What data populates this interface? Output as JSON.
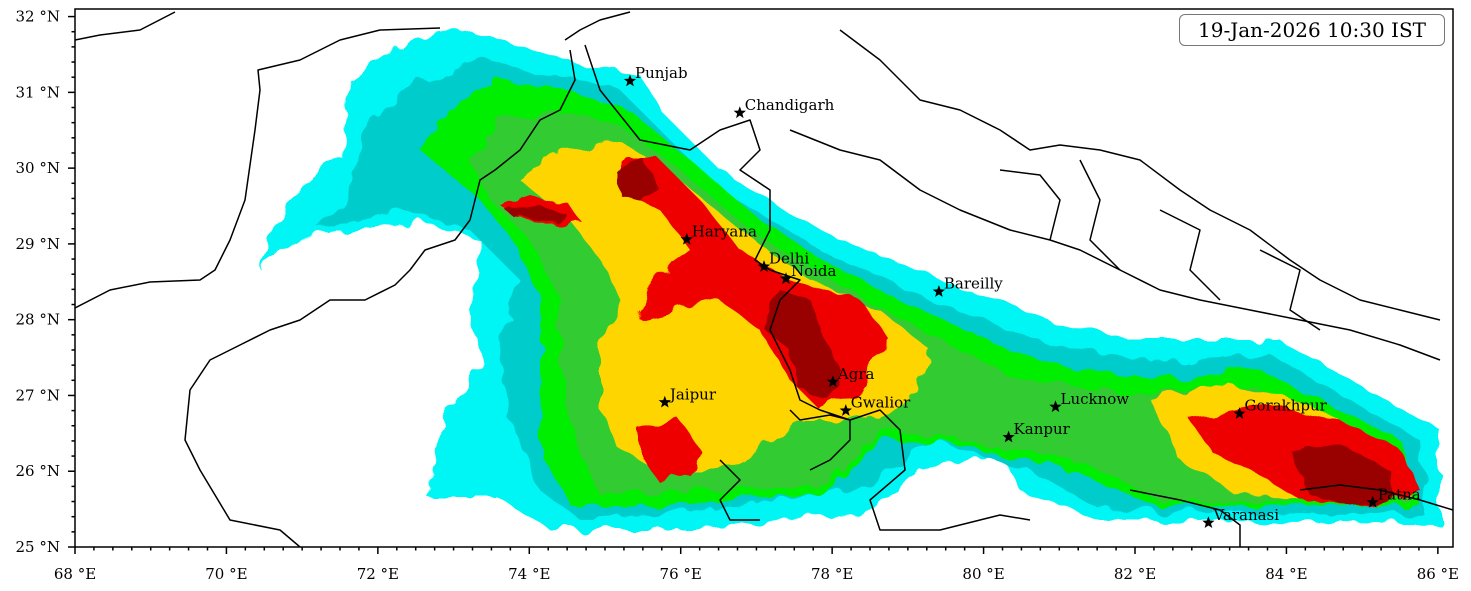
{
  "timestamp": "19-Jan-2026 10:30 IST",
  "colors": {
    "cyan": "#00f5f5",
    "teal": "#00cccc",
    "green": "#00ee00",
    "dark_green": "#33cc33",
    "yellow": "#ffd500",
    "red": "#ee0000",
    "dark_red": "#990000"
  },
  "map": {
    "lon_range": [
      68,
      86.2
    ],
    "lat_range": [
      25,
      32.1
    ],
    "lon_ticks": [
      "68 °E",
      "70 °E",
      "72 °E",
      "74 °E",
      "76 °E",
      "78 °E",
      "80 °E",
      "82 °E",
      "84 °E",
      "86 °E"
    ],
    "lat_ticks": [
      "25 °N",
      "26 °N",
      "27 °N",
      "28 °N",
      "29 °N",
      "30 °N",
      "31 °N",
      "32 °N"
    ],
    "cities": [
      {
        "name": "Punjab",
        "lon": 75.33,
        "lat": 31.15
      },
      {
        "name": "Chandigarh",
        "lon": 76.78,
        "lat": 30.73
      },
      {
        "name": "Haryana",
        "lon": 76.08,
        "lat": 29.06
      },
      {
        "name": "Delhi",
        "lon": 77.1,
        "lat": 28.7
      },
      {
        "name": "Noida",
        "lon": 77.39,
        "lat": 28.54
      },
      {
        "name": "Bareilly",
        "lon": 79.41,
        "lat": 28.37
      },
      {
        "name": "Agra",
        "lon": 78.01,
        "lat": 27.18
      },
      {
        "name": "Jaipur",
        "lon": 75.79,
        "lat": 26.91
      },
      {
        "name": "Gwalior",
        "lon": 78.18,
        "lat": 26.8
      },
      {
        "name": "Lucknow",
        "lon": 80.95,
        "lat": 26.85
      },
      {
        "name": "Kanpur",
        "lon": 80.33,
        "lat": 26.45
      },
      {
        "name": "Gorakhpur",
        "lon": 83.38,
        "lat": 26.76
      },
      {
        "name": "Varanasi",
        "lon": 82.97,
        "lat": 25.32
      },
      {
        "name": "Patna",
        "lon": 85.14,
        "lat": 25.59
      }
    ]
  }
}
